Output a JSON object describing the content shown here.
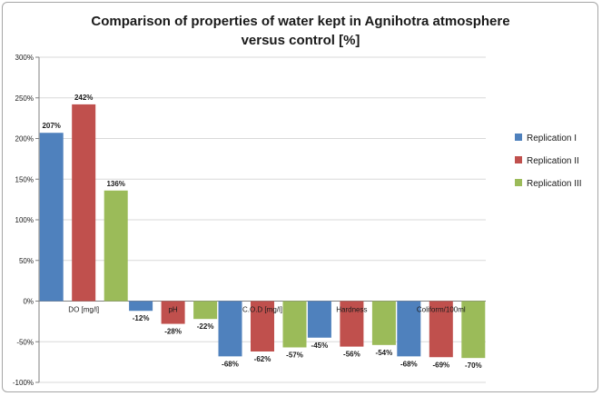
{
  "chart_data": {
    "type": "bar",
    "title_lines": [
      "Comparison of properties of water kept in Agnihotra atmosphere",
      "versus control [%]"
    ],
    "categories": [
      "DO [mg/l]",
      "pH",
      "C.O.D [mg/l]",
      "Hardness",
      "Coliform/100ml"
    ],
    "series": [
      {
        "name": "Replication I",
        "values": [
          207,
          -12,
          -68,
          -45,
          -68
        ],
        "labels": [
          "207%",
          "-12%",
          "-68%",
          "-45%",
          "-68%"
        ]
      },
      {
        "name": "Replication II",
        "values": [
          242,
          -28,
          -62,
          -56,
          -69
        ],
        "labels": [
          "242%",
          "-28%",
          "-62%",
          "-56%",
          "-69%"
        ]
      },
      {
        "name": "Replication III",
        "values": [
          136,
          -22,
          -57,
          -54,
          -70
        ],
        "labels": [
          "136%",
          "-22%",
          "-57%",
          "-54%",
          "-70%"
        ]
      }
    ],
    "y_ticks": [
      "300%",
      "250%",
      "200%",
      "150%",
      "100%",
      "50%",
      "0%",
      "-50%",
      "-100%"
    ],
    "ylim": [
      -100,
      300
    ],
    "grid": true,
    "legend_position": "right",
    "colors": [
      "#4f81bd",
      "#c0504d",
      "#9bbb59"
    ]
  }
}
